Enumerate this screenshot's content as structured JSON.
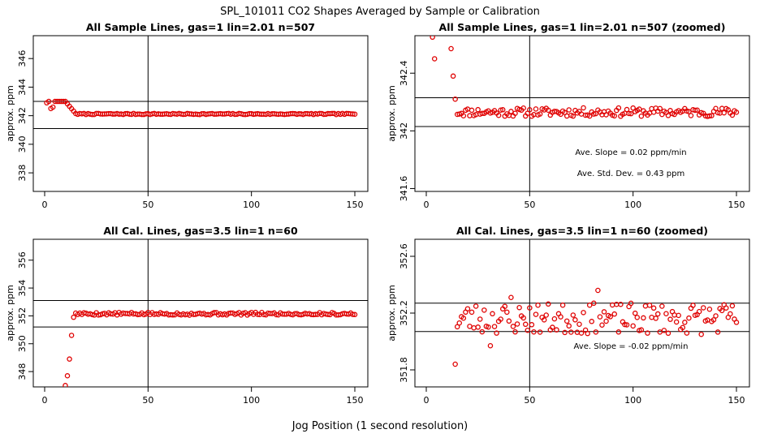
{
  "figure": {
    "title": "SPL_101011  CO2 Shapes Averaged by Sample or Calibration",
    "xlabel": "Jog Position (1 second resolution)",
    "colors": {
      "points": "#e00000",
      "lines": "#000000"
    }
  },
  "chart_data": [
    {
      "type": "scatter",
      "title": "All Sample Lines, gas=1 lin=2.01 n=507",
      "ylabel": "approx. ppm",
      "xlim": [
        0,
        150
      ],
      "ylim": [
        336.7,
        347.6
      ],
      "xticks": [
        0,
        50,
        100,
        150
      ],
      "yticks": [
        338,
        340,
        342,
        344,
        346
      ],
      "hlines": [
        343.0,
        341.1
      ],
      "vline": 50,
      "annotations": [],
      "series": [
        {
          "kind": "sample_full",
          "start": 1
        }
      ]
    },
    {
      "type": "scatter",
      "title": "All Sample Lines, gas=1 lin=2.01 n=507 (zoomed)",
      "ylabel": "approx. ppm",
      "xlim": [
        0,
        150
      ],
      "ylim": [
        341.58,
        342.66
      ],
      "xticks": [
        0,
        50,
        100,
        150
      ],
      "yticks": [
        341.6,
        342.0,
        342.4
      ],
      "hlines": [
        342.23,
        342.03
      ],
      "vline": 50,
      "annotations": [
        "Ave. Slope =  0.02  ppm/min",
        "Ave. Std. Dev. =  0.43  ppm"
      ],
      "series": [
        {
          "kind": "sample_zoom",
          "start": 1
        }
      ]
    },
    {
      "type": "scatter",
      "title": "All Cal. Lines, gas=3.5 lin=1 n=60",
      "ylabel": "approx. ppm",
      "xlim": [
        0,
        150
      ],
      "ylim": [
        346.9,
        357.5
      ],
      "xticks": [
        0,
        50,
        100,
        150
      ],
      "yticks": [
        348,
        350,
        352,
        354,
        356
      ],
      "hlines": [
        353.1,
        351.2
      ],
      "vline": 50,
      "annotations": [],
      "series": [
        {
          "kind": "cal_full",
          "start": 10
        }
      ]
    },
    {
      "type": "scatter",
      "title": "All Cal. Lines, gas=3.5 lin=1 n=60 (zoomed)",
      "ylabel": "approx. ppm",
      "xlim": [
        0,
        150
      ],
      "ylim": [
        351.68,
        352.72
      ],
      "xticks": [
        0,
        50,
        100,
        150
      ],
      "yticks": [
        351.8,
        352.2,
        352.6
      ],
      "hlines": [
        352.27,
        352.07
      ],
      "vline": 50,
      "annotations": [
        "Ave. Slope =  -0.02  ppm/min"
      ],
      "series": [
        {
          "kind": "cal_zoom",
          "start": 15
        }
      ]
    }
  ]
}
